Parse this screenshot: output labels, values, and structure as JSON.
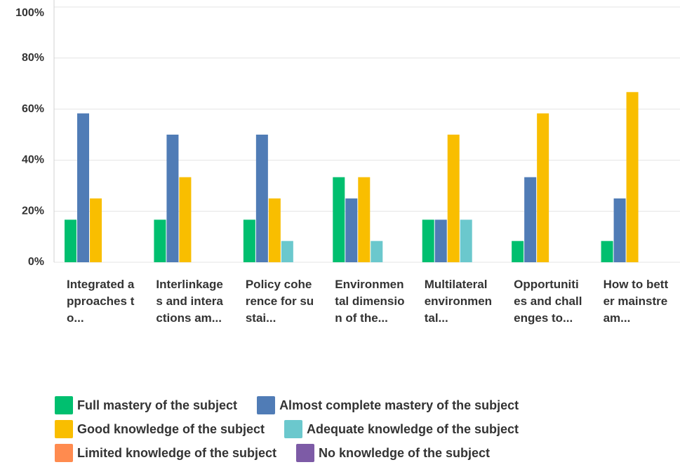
{
  "chart_data": {
    "type": "bar",
    "categories": [
      "Integrated approaches to...",
      "Interlinkages and interactions am...",
      "Policy coherence for sustai...",
      "Environmental dimension of the...",
      "Multilateral environmental...",
      "Opportunities and challenges to...",
      "How to better mainstream..."
    ],
    "series": [
      {
        "name": "Full mastery of the subject",
        "color": "#00bf6f",
        "values": [
          16.67,
          16.67,
          16.67,
          33.33,
          16.67,
          8.33,
          8.33
        ]
      },
      {
        "name": "Almost complete mastery of the subject",
        "color": "#507cb6",
        "values": [
          58.33,
          50,
          50,
          25,
          16.67,
          33.33,
          25
        ]
      },
      {
        "name": "Good knowledge of the subject",
        "color": "#f9be00",
        "values": [
          25,
          33.33,
          25,
          33.33,
          50,
          58.33,
          66.67
        ]
      },
      {
        "name": "Adequate knowledge of the subject",
        "color": "#6bc8cd",
        "values": [
          0,
          0,
          8.33,
          8.33,
          16.67,
          0,
          0
        ]
      },
      {
        "name": "Limited knowledge of the subject",
        "color": "#ff8b4f",
        "values": [
          0,
          0,
          0,
          0,
          0,
          0,
          0
        ]
      },
      {
        "name": "No knowledge of the subject",
        "color": "#7d5ba6",
        "values": [
          0,
          0,
          0,
          0,
          0,
          0,
          0
        ]
      }
    ],
    "ylim": [
      0,
      100
    ],
    "yticks": [
      {
        "value": 0,
        "label": "0%"
      },
      {
        "value": 20,
        "label": "20%"
      },
      {
        "value": 40,
        "label": "40%"
      },
      {
        "value": 60,
        "label": "60%"
      },
      {
        "value": 80,
        "label": "80%"
      },
      {
        "value": 100,
        "label": "100%"
      }
    ],
    "grid": true
  }
}
